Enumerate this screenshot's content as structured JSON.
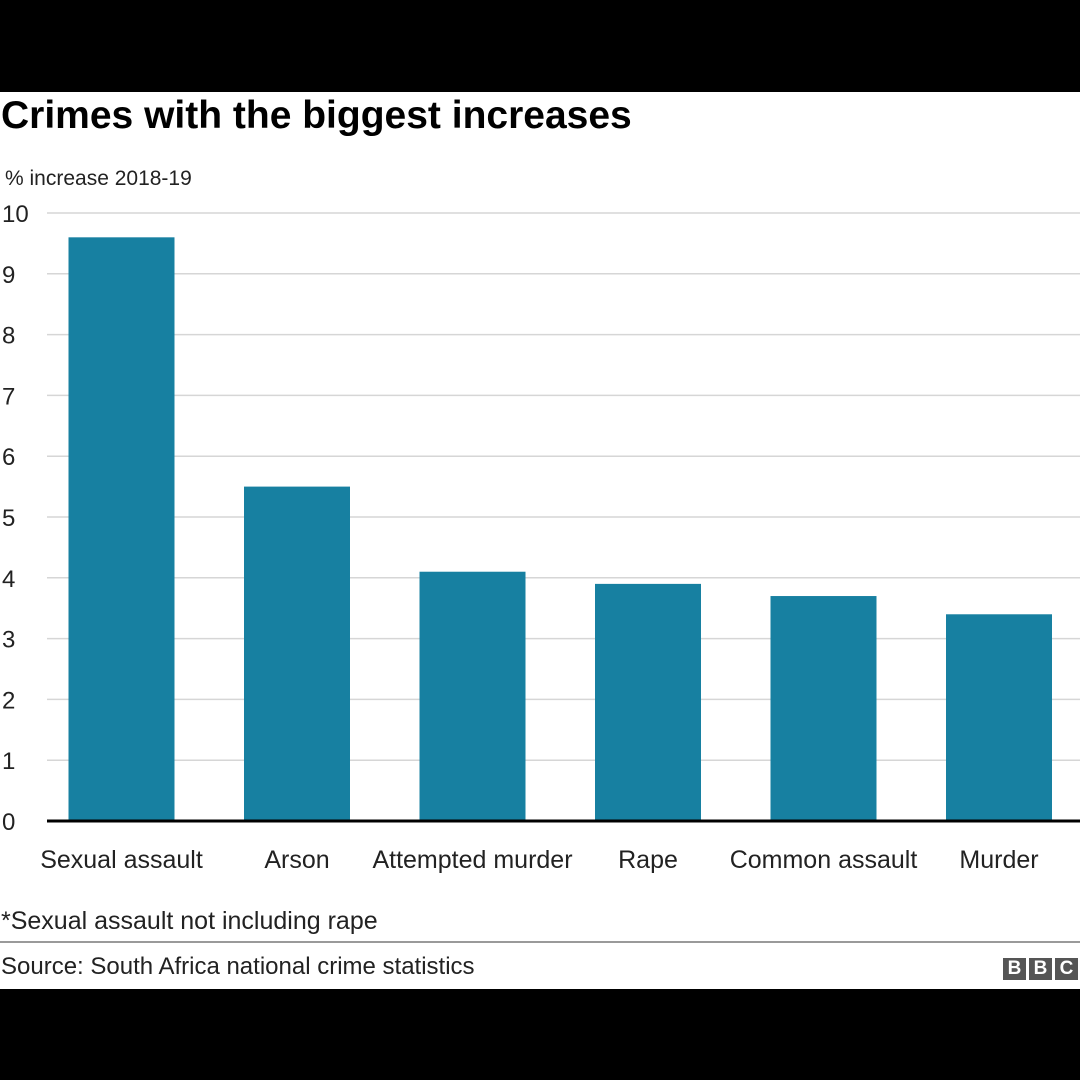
{
  "title": "Crimes with the biggest increases",
  "subtitle": "% increase 2018-19",
  "footnote": "*Sexual assault not including rape",
  "source": "Source: South Africa national crime statistics",
  "logo": [
    "B",
    "B",
    "C"
  ],
  "colors": {
    "bar": "#1780a1",
    "grid": "#d6d6d6",
    "axis": "#000000",
    "text": "#222222"
  },
  "chart_data": {
    "type": "bar",
    "title": "Crimes with the biggest increases",
    "ylabel": "% increase 2018-19",
    "xlabel": "",
    "categories": [
      "Sexual assault",
      "Arson",
      "Attempted murder",
      "Rape",
      "Common assault",
      "Murder"
    ],
    "values": [
      9.6,
      5.5,
      4.1,
      3.9,
      3.7,
      3.4
    ],
    "ylim": [
      0,
      10
    ],
    "yticks": [
      0,
      1,
      2,
      3,
      4,
      5,
      6,
      7,
      8,
      9,
      10
    ],
    "grid": true
  }
}
